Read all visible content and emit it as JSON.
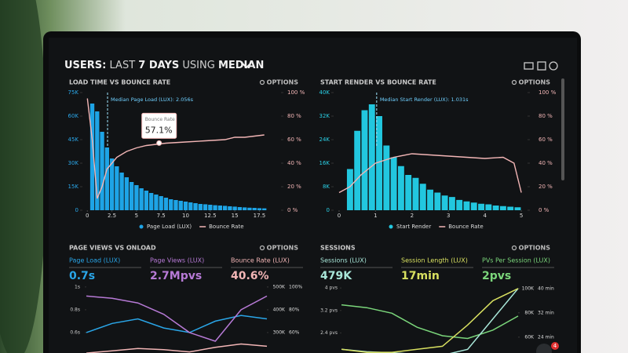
{
  "header": {
    "title_parts": [
      "USERS:",
      "LAST",
      "7 DAYS",
      "USING",
      "MEDIAN"
    ]
  },
  "notification_count": "4",
  "chart_data": [
    {
      "type": "combo",
      "title": "LOAD TIME VS BOUNCE RATE",
      "options": "OPTIONS",
      "xlim": [
        -0.5,
        19.7
      ],
      "xticks": [
        0,
        2.5,
        5,
        7.5,
        10,
        12.5,
        15,
        17.5
      ],
      "ylim": [
        0,
        75000
      ],
      "yticks": [
        {
          "value": 0,
          "label": "0"
        },
        {
          "value": 15000,
          "label": "15K"
        },
        {
          "value": 30000,
          "label": "30K"
        },
        {
          "value": 45000,
          "label": "45K"
        },
        {
          "value": 60000,
          "label": "60K"
        },
        {
          "value": 75000,
          "label": "75K"
        }
      ],
      "y2lim": [
        0,
        100
      ],
      "y2ticks": [
        {
          "value": 0,
          "label": "0 %"
        },
        {
          "value": 20,
          "label": "20 %"
        },
        {
          "value": 40,
          "label": "40 %"
        },
        {
          "value": 60,
          "label": "60 %"
        },
        {
          "value": 80,
          "label": "80 %"
        },
        {
          "value": 100,
          "label": "100 %"
        }
      ],
      "median": {
        "x": 2.056,
        "label": "Median Page Load (LUX): 2.056s"
      },
      "tooltip": {
        "title": "Bounce Rate",
        "x": 7.3,
        "value": 57.1,
        "value_label": "57.1%"
      },
      "series": [
        {
          "name": "Page Load (LUX)",
          "type": "bar",
          "color": "#1ea4e6",
          "x": [
            0.5,
            1,
            1.5,
            2,
            2.5,
            3,
            3.5,
            4,
            4.5,
            5,
            5.5,
            6,
            6.5,
            7,
            7.5,
            8,
            8.5,
            9,
            9.5,
            10,
            10.5,
            11,
            11.5,
            12,
            12.5,
            13,
            13.5,
            14,
            14.5,
            15,
            15.5,
            16,
            16.5,
            17,
            17.5,
            18
          ],
          "values": [
            68000,
            63000,
            50000,
            40000,
            33000,
            28000,
            24000,
            21000,
            18000,
            16000,
            14000,
            12500,
            11000,
            10000,
            9000,
            8000,
            7000,
            6500,
            6000,
            5500,
            5000,
            4500,
            4000,
            3800,
            3500,
            3200,
            3000,
            2800,
            2500,
            2300,
            2000,
            1800,
            1600,
            1500,
            1300,
            1200
          ]
        },
        {
          "name": "Bounce Rate",
          "type": "line",
          "axis": "y2",
          "color": "#f3b6b6",
          "x": [
            0,
            0.5,
            1,
            1.5,
            2,
            3,
            4,
            5,
            6,
            8,
            10,
            12,
            14,
            15,
            16,
            18
          ],
          "values": [
            95,
            60,
            10,
            20,
            35,
            45,
            50,
            53,
            55,
            57,
            58,
            59,
            60,
            62,
            62,
            64
          ]
        }
      ]
    },
    {
      "type": "combo",
      "title": "START RENDER VS BOUNCE RATE",
      "options": "OPTIONS",
      "xlim": [
        -0.15,
        5.17
      ],
      "xticks": [
        0,
        1,
        2,
        3,
        4,
        5
      ],
      "ylim": [
        0,
        40000
      ],
      "yticks": [
        {
          "value": 0,
          "label": "0"
        },
        {
          "value": 8000,
          "label": "8K"
        },
        {
          "value": 16000,
          "label": "16K"
        },
        {
          "value": 24000,
          "label": "24K"
        },
        {
          "value": 32000,
          "label": "32K"
        },
        {
          "value": 40000,
          "label": "40K"
        }
      ],
      "y2lim": [
        0,
        100
      ],
      "y2ticks": [
        {
          "value": 0,
          "label": "0 %"
        },
        {
          "value": 20,
          "label": "20 %"
        },
        {
          "value": 40,
          "label": "40 %"
        },
        {
          "value": 60,
          "label": "60 %"
        },
        {
          "value": 80,
          "label": "80 %"
        },
        {
          "value": 100,
          "label": "100 %"
        }
      ],
      "median": {
        "x": 1.031,
        "label": "Median Start Render (LUX): 1.031s"
      },
      "series": [
        {
          "name": "Start Render",
          "type": "bar",
          "color": "#22c7df",
          "x": [
            0.3,
            0.5,
            0.7,
            0.9,
            1.1,
            1.3,
            1.5,
            1.7,
            1.9,
            2.1,
            2.3,
            2.5,
            2.7,
            2.9,
            3.1,
            3.3,
            3.5,
            3.7,
            3.9,
            4.1,
            4.3,
            4.5,
            4.7,
            4.9
          ],
          "values": [
            14000,
            27000,
            34000,
            36000,
            32000,
            22000,
            18000,
            15000,
            12000,
            11000,
            9000,
            7000,
            6000,
            5000,
            4500,
            3500,
            3000,
            2600,
            2200,
            2000,
            1600,
            1400,
            1200,
            1000
          ]
        },
        {
          "name": "Bounce Rate",
          "type": "line",
          "axis": "y2",
          "color": "#f3b6b6",
          "x": [
            0,
            0.3,
            0.6,
            1,
            1.5,
            2,
            2.5,
            3,
            3.5,
            4,
            4.5,
            4.8,
            5
          ],
          "values": [
            15,
            20,
            30,
            40,
            45,
            48,
            47,
            46,
            45,
            44,
            45,
            40,
            15
          ]
        }
      ]
    },
    {
      "type": "line",
      "title": "PAGE VIEWS VS ONLOAD",
      "options": "OPTIONS",
      "kpis": [
        {
          "label": "Page Load (LUX)",
          "value": "0.7s",
          "color": "#2aa6e8"
        },
        {
          "label": "Page Views (LUX)",
          "value": "2.7Mpvs",
          "color": "#b77ad6"
        },
        {
          "label": "Bounce Rate (LUX)",
          "value": "40.6%",
          "color": "#f3b6b6"
        }
      ],
      "categories": [
        null,
        null,
        null,
        null,
        null,
        null,
        null,
        null
      ],
      "ylim": [
        0.4,
        1.04
      ],
      "yticks": [
        {
          "value": 1,
          "label": "1s"
        },
        {
          "value": 0.8,
          "label": "0.8s"
        },
        {
          "value": 0.6,
          "label": "0.6s"
        }
      ],
      "y2lim": [
        200000,
        520000
      ],
      "y2ticks": [
        {
          "value": 500000,
          "label": "500K"
        },
        {
          "value": 400000,
          "label": "400K"
        },
        {
          "value": 300000,
          "label": "300K"
        }
      ],
      "y3lim": [
        40,
        104
      ],
      "y3ticks": [
        {
          "value": 100,
          "label": "100%"
        },
        {
          "value": 80,
          "label": "80%"
        },
        {
          "value": 60,
          "label": "60%"
        }
      ],
      "series": [
        {
          "name": "Page Load (LUX)",
          "color": "#2aa6e8",
          "values": [
            0.6,
            0.68,
            0.72,
            0.64,
            0.6,
            0.7,
            0.75,
            0.72
          ]
        },
        {
          "name": "Page Views (LUX)",
          "axis": "y2",
          "color": "#b77ad6",
          "values": [
            460000,
            450000,
            430000,
            380000,
            300000,
            262000,
            400000,
            460000
          ]
        },
        {
          "name": "Bounce Rate (LUX)",
          "axis": "y3",
          "color": "#f3b6b6",
          "values": [
            42,
            44,
            46,
            45,
            43,
            47,
            50,
            48
          ]
        }
      ]
    },
    {
      "type": "line",
      "title": "SESSIONS",
      "options": "OPTIONS",
      "kpis": [
        {
          "label": "Sessions (LUX)",
          "value": "479K",
          "color": "#a8e6d8"
        },
        {
          "label": "Session Length (LUX)",
          "value": "17min",
          "color": "#d8e060"
        },
        {
          "label": "PVs Per Session (LUX)",
          "value": "2pvs",
          "color": "#7bd67b"
        }
      ],
      "categories": [
        null,
        null,
        null,
        null,
        null,
        null,
        null,
        null
      ],
      "ylim": [
        1.6,
        4.2
      ],
      "yticks": [
        {
          "value": 4,
          "label": "4 pvs"
        },
        {
          "value": 3.2,
          "label": "3.2 pvs"
        },
        {
          "value": 2.4,
          "label": "2.4 pvs"
        }
      ],
      "y2lim": [
        45000,
        105000
      ],
      "y2ticks": [
        {
          "value": 100000,
          "label": "100K"
        },
        {
          "value": 80000,
          "label": "80K"
        },
        {
          "value": 60000,
          "label": "60K"
        }
      ],
      "y3lim": [
        18,
        42
      ],
      "y3ticks": [
        {
          "value": 40,
          "label": "40 min"
        },
        {
          "value": 32,
          "label": "32 min"
        },
        {
          "value": 24,
          "label": "24 min"
        }
      ],
      "series": [
        {
          "name": "PVs Per Session (LUX)",
          "color": "#7bd67b",
          "values": [
            3.4,
            3.3,
            3.1,
            2.6,
            2.3,
            2.2,
            2.5,
            3.0
          ]
        },
        {
          "name": "Sessions (LUX)",
          "axis": "y2",
          "color": "#a8e6d8",
          "values": [
            50000,
            48000,
            47000,
            46000,
            45000,
            50000,
            75000,
            100000
          ]
        },
        {
          "name": "Session Length (LUX)",
          "axis": "y3",
          "color": "#d8e060",
          "values": [
            20,
            19,
            19,
            20,
            21,
            28,
            36,
            40
          ]
        }
      ]
    }
  ]
}
